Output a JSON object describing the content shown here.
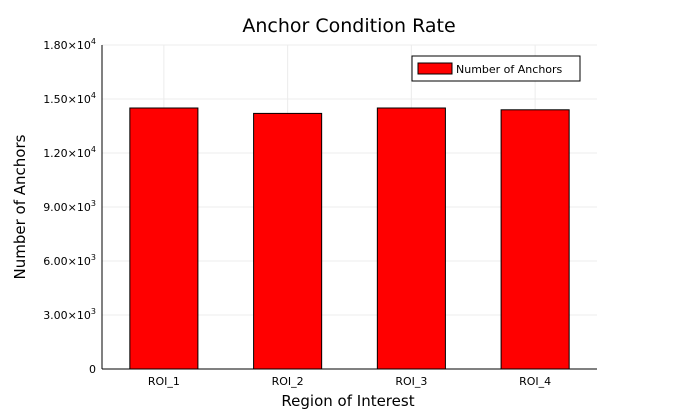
{
  "chart_data": {
    "type": "bar",
    "title": "Anchor Condition Rate",
    "xlabel": "Region of Interest",
    "ylabel": "Number of Anchors",
    "categories": [
      "ROI_1",
      "ROI_2",
      "ROI_3",
      "ROI_4"
    ],
    "series": [
      {
        "name": "Number of Anchors",
        "values": [
          14500,
          14200,
          14500,
          14400
        ],
        "color": "#ff0000"
      }
    ],
    "ylim": [
      0,
      18000
    ],
    "yticks": [
      {
        "value": 0,
        "mantissa": "0",
        "exponent": ""
      },
      {
        "value": 3000,
        "mantissa": "3.00×10",
        "exponent": "3"
      },
      {
        "value": 6000,
        "mantissa": "6.00×10",
        "exponent": "3"
      },
      {
        "value": 9000,
        "mantissa": "9.00×10",
        "exponent": "3"
      },
      {
        "value": 12000,
        "mantissa": "1.20×10",
        "exponent": "4"
      },
      {
        "value": 15000,
        "mantissa": "1.50×10",
        "exponent": "4"
      },
      {
        "value": 18000,
        "mantissa": "1.80×10",
        "exponent": "4"
      }
    ],
    "grid": true,
    "legend_position": "top-right"
  }
}
